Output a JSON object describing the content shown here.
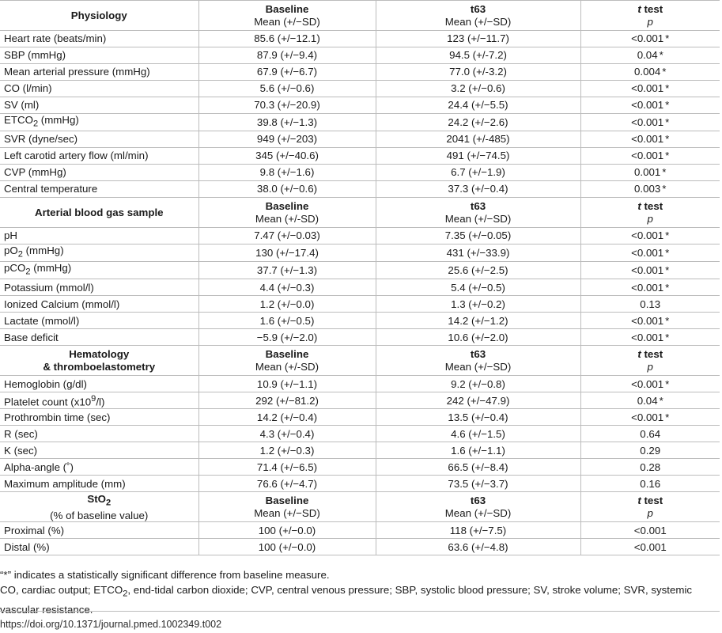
{
  "sections": [
    {
      "title_lines": [
        "Physiology"
      ],
      "baseline_header": "Baseline",
      "baseline_sub": "Mean (+/−SD)",
      "t63_header": "t63",
      "t63_sub": "Mean (+/−SD)",
      "ttest_header_italic": "t",
      "ttest_header_rest": " test",
      "ttest_sub": "p",
      "rows": [
        {
          "name": "Heart rate (beats/min)",
          "baseline": "85.6 (+/−12.1)",
          "t63": "123 (+/−11.7)",
          "p": "<0.001",
          "sig": "*"
        },
        {
          "name": "SBP (mmHg)",
          "baseline": "87.9 (+/−9.4)",
          "t63": "94.5 (+/-7.2)",
          "p": "0.04",
          "sig": "*"
        },
        {
          "name": "Mean arterial pressure (mmHg)",
          "baseline": "67.9 (+/−6.7)",
          "t63": "77.0 (+/-3.2)",
          "p": "0.004",
          "sig": "*"
        },
        {
          "name": "CO (l/min)",
          "baseline": "5.6 (+/−0.6)",
          "t63": "3.2 (+/−0.6)",
          "p": "<0.001",
          "sig": "*"
        },
        {
          "name": "SV (ml)",
          "baseline": "70.3 (+/−20.9)",
          "t63": "24.4 (+/−5.5)",
          "p": "<0.001",
          "sig": "*"
        },
        {
          "name": "ETCO",
          "name_sub": "2",
          "name_tail": " (mmHg)",
          "baseline": "39.8 (+/−1.3)",
          "t63": "24.2 (+/−2.6)",
          "p": "<0.001",
          "sig": "*"
        },
        {
          "name": "SVR (dyne/sec)",
          "baseline": "949 (+/−203)",
          "t63": "2041 (+/-485)",
          "p": "<0.001",
          "sig": "*"
        },
        {
          "name": "Left carotid artery flow (ml/min)",
          "baseline": "345 (+/−40.6)",
          "t63": "491 (+/−74.5)",
          "p": "<0.001",
          "sig": "*"
        },
        {
          "name": "CVP (mmHg)",
          "baseline": "9.8 (+/−1.6)",
          "t63": "6.7 (+/−1.9)",
          "p": "0.001",
          "sig": "*"
        },
        {
          "name": "Central temperature",
          "baseline": "38.0 (+/−0.6)",
          "t63": "37.3 (+/−0.4)",
          "p": "0.003",
          "sig": "*"
        }
      ]
    },
    {
      "title_lines": [
        "Arterial blood gas sample"
      ],
      "baseline_header": "Baseline",
      "baseline_sub": "Mean (+/-SD)",
      "t63_header": "t63",
      "t63_sub": "Mean (+/−SD)",
      "ttest_header_italic": "t",
      "ttest_header_rest": " test",
      "ttest_sub": "p",
      "rows": [
        {
          "name": "pH",
          "baseline": "7.47 (+/−0.03)",
          "t63": "7.35 (+/−0.05)",
          "p": "<0.001",
          "sig": "*"
        },
        {
          "name": "pO",
          "name_sub": "2",
          "name_tail": " (mmHg)",
          "baseline": "130 (+/−17.4)",
          "t63": "431 (+/−33.9)",
          "p": "<0.001",
          "sig": "*"
        },
        {
          "name": "pCO",
          "name_sub": "2",
          "name_tail": " (mmHg)",
          "baseline": "37.7 (+/−1.3)",
          "t63": "25.6 (+/−2.5)",
          "p": "<0.001",
          "sig": "*"
        },
        {
          "name": "Potassium (mmol/l)",
          "baseline": "4.4 (+/−0.3)",
          "t63": "5.4 (+/−0.5)",
          "p": "<0.001",
          "sig": "*"
        },
        {
          "name": "Ionized Calcium (mmol/l)",
          "baseline": "1.2 (+/−0.0)",
          "t63": "1.3 (+/−0.2)",
          "p": "0.13",
          "sig": ""
        },
        {
          "name": "Lactate (mmol/l)",
          "baseline": "1.6 (+/−0.5)",
          "t63": "14.2 (+/−1.2)",
          "p": "<0.001",
          "sig": "*"
        },
        {
          "name": "Base deficit",
          "baseline": "−5.9 (+/−2.0)",
          "t63": "10.6 (+/−2.0)",
          "p": "<0.001",
          "sig": "*"
        }
      ]
    },
    {
      "title_lines": [
        "Hematology",
        "& thromboelastometry"
      ],
      "baseline_header": "Baseline",
      "baseline_sub": "Mean (+/-SD)",
      "t63_header": "t63",
      "t63_sub": "Mean (+/−SD)",
      "ttest_header_italic": "t",
      "ttest_header_rest": " test",
      "ttest_sub": "p",
      "rows": [
        {
          "name": "Hemoglobin (g/dl)",
          "baseline": "10.9 (+/−1.1)",
          "t63": "9.2 (+/−0.8)",
          "p": "<0.001",
          "sig": "*"
        },
        {
          "name": "Platelet count (x10",
          "name_sup": "9",
          "name_tail": "/l)",
          "baseline": "292 (+/−81.2)",
          "t63": "242 (+/−47.9)",
          "p": "0.04",
          "sig": "*"
        },
        {
          "name": "Prothrombin time (sec)",
          "baseline": "14.2 (+/−0.4)",
          "t63": "13.5 (+/−0.4)",
          "p": "<0.001",
          "sig": "*"
        },
        {
          "name": "R (sec)",
          "baseline": "4.3 (+/−0.4)",
          "t63": "4.6 (+/−1.5)",
          "p": "0.64",
          "sig": ""
        },
        {
          "name": "K (sec)",
          "baseline": "1.2 (+/−0.3)",
          "t63": "1.6 (+/−1.1)",
          "p": "0.29",
          "sig": ""
        },
        {
          "name": "Alpha-angle (˚)",
          "baseline": "71.4 (+/−6.5)",
          "t63": "66.5 (+/−8.4)",
          "p": "0.28",
          "sig": ""
        },
        {
          "name": "Maximum amplitude (mm)",
          "baseline": "76.6 (+/−4.7)",
          "t63": "73.5 (+/−3.7)",
          "p": "0.16",
          "sig": ""
        }
      ]
    },
    {
      "title_lines": [
        "StO",
        "(% of baseline value)"
      ],
      "title_sub": "2",
      "baseline_header": "Baseline",
      "baseline_sub": "Mean (+/−SD)",
      "t63_header": "t63",
      "t63_sub": "Mean (+/−SD)",
      "ttest_header_italic": "t",
      "ttest_header_rest": " test",
      "ttest_sub": "p",
      "rows": [
        {
          "name": "Proximal (%)",
          "baseline": "100 (+/−0.0)",
          "t63": "118 (+/−7.5)",
          "p": "<0.001",
          "sig": ""
        },
        {
          "name": "Distal (%)",
          "baseline": "100 (+/−0.0)",
          "t63": "63.6 (+/−4.8)",
          "p": "<0.001",
          "sig": ""
        }
      ]
    }
  ],
  "footnotes": {
    "sig_note": "“*” indicates a statistically significant difference from baseline measure.",
    "abbr_before": "CO, cardiac output; ETCO",
    "abbr_sub": "2",
    "abbr_after": ", end-tidal carbon dioxide; CVP, central venous pressure; SBP, systolic blood pressure; SV, stroke volume; SVR, systemic vascular resistance.",
    "doi": "https://doi.org/10.1371/journal.pmed.1002349.t002"
  }
}
